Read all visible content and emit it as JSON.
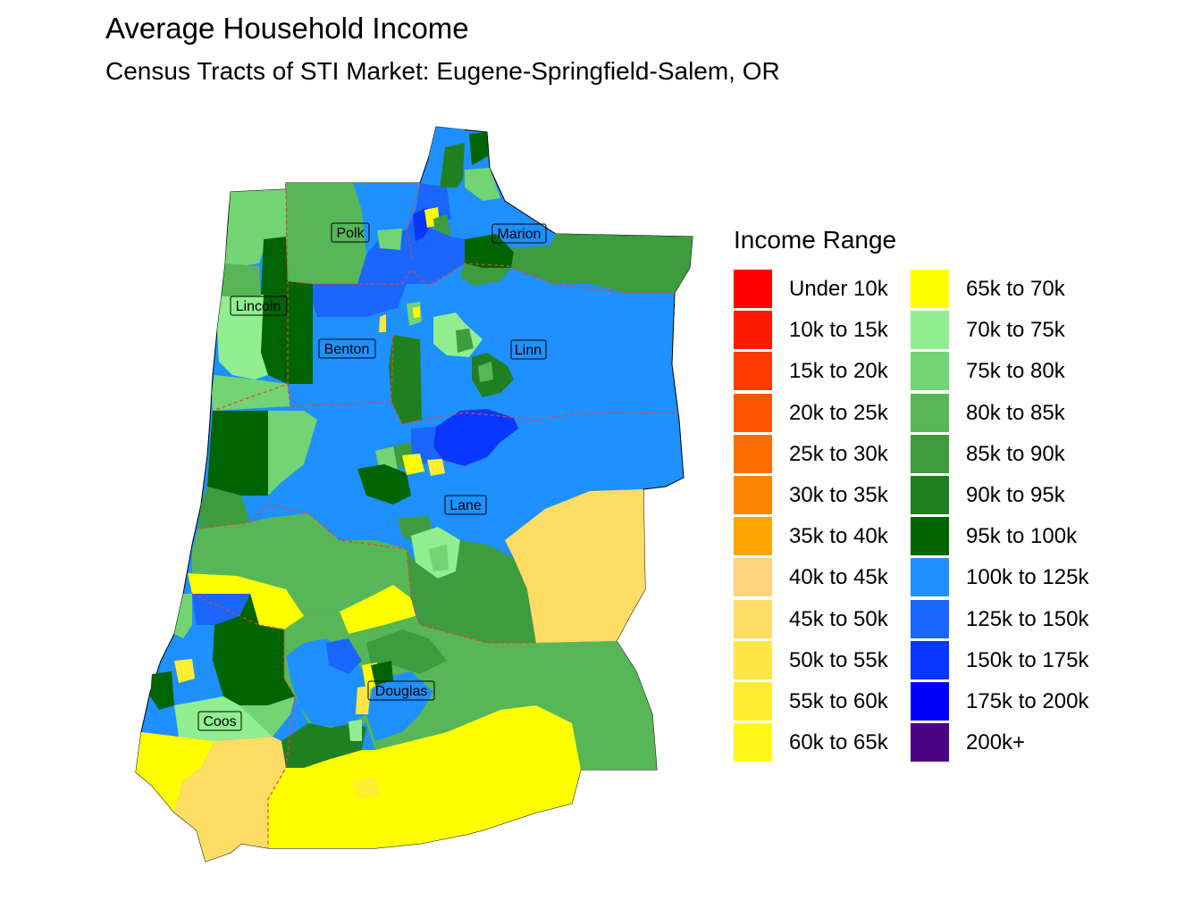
{
  "title": "Average Household Income",
  "subtitle": "Census Tracts of STI Market: Eugene-Springfield-Salem, OR",
  "legend": {
    "title": "Income Range",
    "items": [
      {
        "label": "Under 10k",
        "color": "#FF0000"
      },
      {
        "label": "10k to 15k",
        "color": "#FF1A00"
      },
      {
        "label": "15k to 20k",
        "color": "#FF3A00"
      },
      {
        "label": "20k to 25k",
        "color": "#FF5500"
      },
      {
        "label": "25k to 30k",
        "color": "#FF6E00"
      },
      {
        "label": "30k to 35k",
        "color": "#FF8600"
      },
      {
        "label": "35k to 40k",
        "color": "#FFA500"
      },
      {
        "label": "40k to 45k",
        "color": "#FFD37F"
      },
      {
        "label": "45k to 50k",
        "color": "#FFDC64"
      },
      {
        "label": "50k to 55k",
        "color": "#FFE645"
      },
      {
        "label": "55k to 60k",
        "color": "#FFEE30"
      },
      {
        "label": "60k to 65k",
        "color": "#FFF71A"
      },
      {
        "label": "65k to 70k",
        "color": "#FFFF00"
      },
      {
        "label": "70k to 75k",
        "color": "#90EE90"
      },
      {
        "label": "75k to 80k",
        "color": "#72D472"
      },
      {
        "label": "80k to 85k",
        "color": "#57B757"
      },
      {
        "label": "85k to 90k",
        "color": "#3D9C3D"
      },
      {
        "label": "90k to 95k",
        "color": "#1F801F"
      },
      {
        "label": "95k to 100k",
        "color": "#006400"
      },
      {
        "label": "100k to 125k",
        "color": "#1E90FF"
      },
      {
        "label": "125k to 150k",
        "color": "#1A66FF"
      },
      {
        "label": "150k to 175k",
        "color": "#0A37FF"
      },
      {
        "label": "175k to 200k",
        "color": "#0000FF"
      },
      {
        "label": "200k+",
        "color": "#4B0082"
      }
    ]
  },
  "counties": [
    {
      "name": "Polk"
    },
    {
      "name": "Marion"
    },
    {
      "name": "Lincoln"
    },
    {
      "name": "Benton"
    },
    {
      "name": "Linn"
    },
    {
      "name": "Lane"
    },
    {
      "name": "Douglas"
    },
    {
      "name": "Coos"
    }
  ]
}
